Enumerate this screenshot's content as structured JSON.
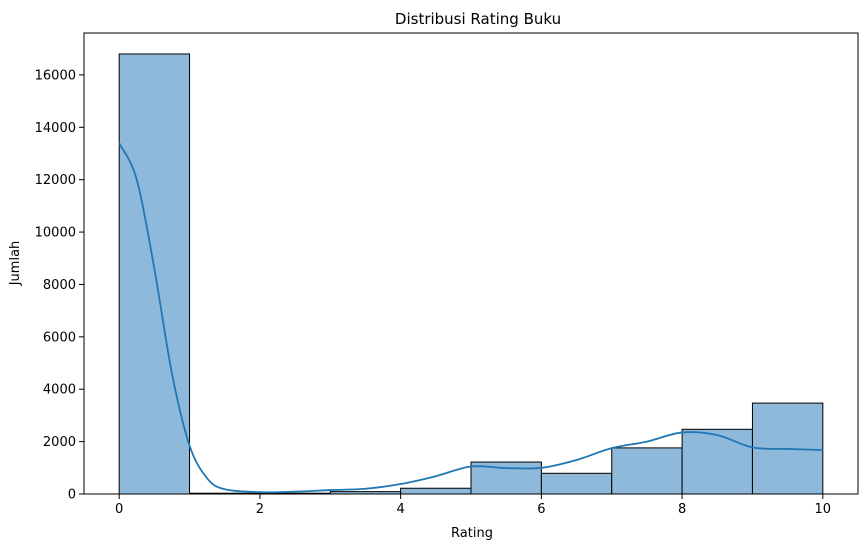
{
  "chart_data": {
    "type": "bar",
    "subtype": "histogram_with_kde",
    "title": "Distribusi Rating Buku",
    "xlabel": "Rating",
    "ylabel": "Jumlah",
    "xlim": [
      -0.5,
      10.5
    ],
    "ylim": [
      0,
      17600
    ],
    "x_ticks": [
      0,
      2,
      4,
      6,
      8,
      10
    ],
    "y_ticks": [
      0,
      2000,
      4000,
      6000,
      8000,
      10000,
      12000,
      14000,
      16000
    ],
    "bins": [
      {
        "x0": 0,
        "x1": 1,
        "value": 16800
      },
      {
        "x0": 1,
        "x1": 2,
        "value": 30
      },
      {
        "x0": 2,
        "x1": 3,
        "value": 30
      },
      {
        "x0": 3,
        "x1": 4,
        "value": 90
      },
      {
        "x0": 4,
        "x1": 5,
        "value": 220
      },
      {
        "x0": 5,
        "x1": 6,
        "value": 1220
      },
      {
        "x0": 6,
        "x1": 7,
        "value": 790
      },
      {
        "x0": 7,
        "x1": 8,
        "value": 1760
      },
      {
        "x0": 8,
        "x1": 9,
        "value": 2470
      },
      {
        "x0": 9,
        "x1": 10,
        "value": 3470
      }
    ],
    "kde": {
      "x": [
        0,
        0.25,
        0.5,
        0.75,
        1.0,
        1.25,
        1.5,
        2.0,
        2.5,
        3.0,
        3.5,
        4.0,
        4.5,
        5.0,
        5.5,
        6.0,
        6.5,
        7.0,
        7.5,
        8.0,
        8.5,
        9.0,
        9.5,
        10.0
      ],
      "y": [
        13400,
        12000,
        8600,
        4600,
        1850,
        600,
        180,
        70,
        90,
        150,
        200,
        380,
        680,
        1050,
        990,
        1000,
        1300,
        1750,
        2000,
        2350,
        2250,
        1780,
        1720,
        1680
      ]
    },
    "colors": {
      "bar_fill": "#8fb9da",
      "bar_edge": "#000000",
      "kde_line": "#1f77b4"
    },
    "grid": false,
    "legend": "none"
  }
}
